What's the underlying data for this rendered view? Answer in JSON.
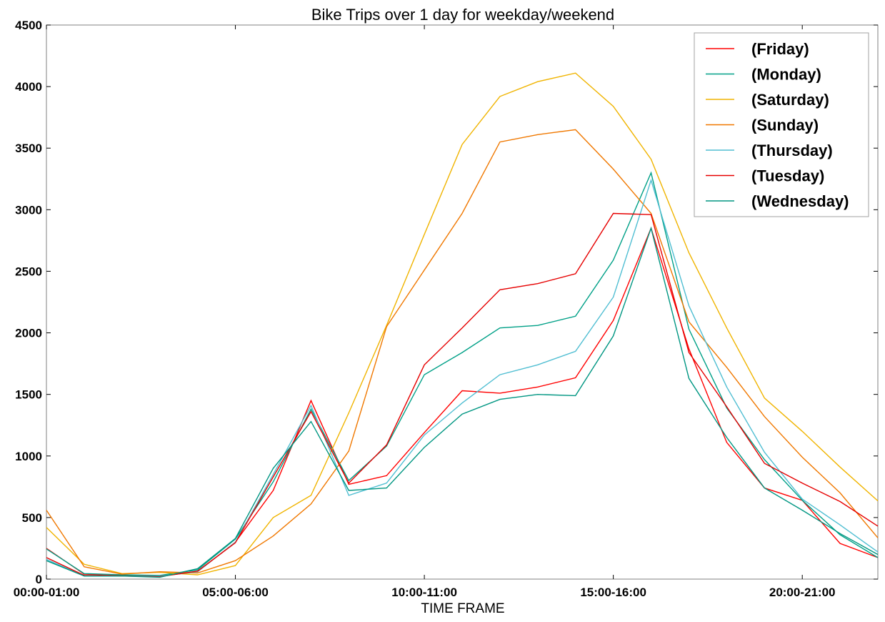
{
  "chart_data": {
    "type": "line",
    "title": "Bike Trips over 1 day for weekday/weekend",
    "xlabel": "TIME FRAME",
    "ylabel": "",
    "ylim": [
      0,
      4500
    ],
    "yticks": [
      0,
      500,
      1000,
      1500,
      2000,
      2500,
      3000,
      3500,
      4000,
      4500
    ],
    "categories": [
      "00:00-01:00",
      "01:00-02:00",
      "02:00-03:00",
      "03:00-04:00",
      "04:00-05:00",
      "05:00-06:00",
      "06:00-07:00",
      "07:00-08:00",
      "08:00-09:00",
      "09:00-10:00",
      "10:00-11:00",
      "11:00-12:00",
      "12:00-13:00",
      "13:00-14:00",
      "14:00-15:00",
      "15:00-16:00",
      "16:00-17:00",
      "17:00-18:00",
      "18:00-19:00",
      "19:00-20:00",
      "20:00-21:00",
      "21:00-22:00",
      "22:00-23:00"
    ],
    "xtick_labels": [
      {
        "index": 0,
        "label": "00:00-01:00"
      },
      {
        "index": 5,
        "label": "05:00-06:00"
      },
      {
        "index": 10,
        "label": "10:00-11:00"
      },
      {
        "index": 15,
        "label": "15:00-16:00"
      },
      {
        "index": 20,
        "label": "20:00-21:00"
      }
    ],
    "legend": "top-right",
    "grid": false,
    "series": [
      {
        "name": "(Friday)",
        "color": "#ff0000",
        "values": [
          250,
          40,
          30,
          25,
          60,
          300,
          720,
          1450,
          770,
          840,
          1190,
          1530,
          1510,
          1560,
          1635,
          2100,
          2850,
          1870,
          1110,
          740,
          640,
          290,
          175
        ]
      },
      {
        "name": "(Monday)",
        "color": "#00a087",
        "values": [
          245,
          45,
          35,
          30,
          75,
          325,
          790,
          1380,
          800,
          1080,
          1660,
          1840,
          2040,
          2060,
          2135,
          2590,
          3300,
          2030,
          1390,
          970,
          640,
          360,
          175
        ]
      },
      {
        "name": "(Saturday)",
        "color": "#f0b400",
        "values": [
          420,
          120,
          45,
          55,
          35,
          110,
          500,
          680,
          1350,
          2060,
          2800,
          3530,
          3920,
          4040,
          4110,
          3840,
          3410,
          2650,
          2040,
          1470,
          1200,
          910,
          635
        ]
      },
      {
        "name": "(Sunday)",
        "color": "#f07800",
        "values": [
          560,
          100,
          40,
          60,
          50,
          150,
          350,
          610,
          1040,
          2050,
          2510,
          2970,
          3550,
          3610,
          3650,
          3330,
          2970,
          2090,
          1720,
          1320,
          990,
          700,
          335
        ]
      },
      {
        "name": "(Thursday)",
        "color": "#50bed2",
        "values": [
          160,
          25,
          25,
          25,
          60,
          300,
          850,
          1410,
          680,
          780,
          1170,
          1430,
          1660,
          1740,
          1850,
          2290,
          3240,
          2220,
          1560,
          1030,
          650,
          440,
          220
        ]
      },
      {
        "name": "(Tuesday)",
        "color": "#e60000",
        "values": [
          175,
          30,
          25,
          20,
          65,
          295,
          830,
          1360,
          780,
          1090,
          1740,
          2040,
          2350,
          2400,
          2480,
          2970,
          2960,
          1840,
          1400,
          940,
          780,
          630,
          430
        ]
      },
      {
        "name": "(Wednesday)",
        "color": "#009682",
        "values": [
          150,
          25,
          25,
          15,
          85,
          330,
          900,
          1280,
          720,
          740,
          1070,
          1340,
          1460,
          1500,
          1490,
          1975,
          2850,
          1630,
          1150,
          740,
          560,
          370,
          200
        ]
      }
    ]
  }
}
